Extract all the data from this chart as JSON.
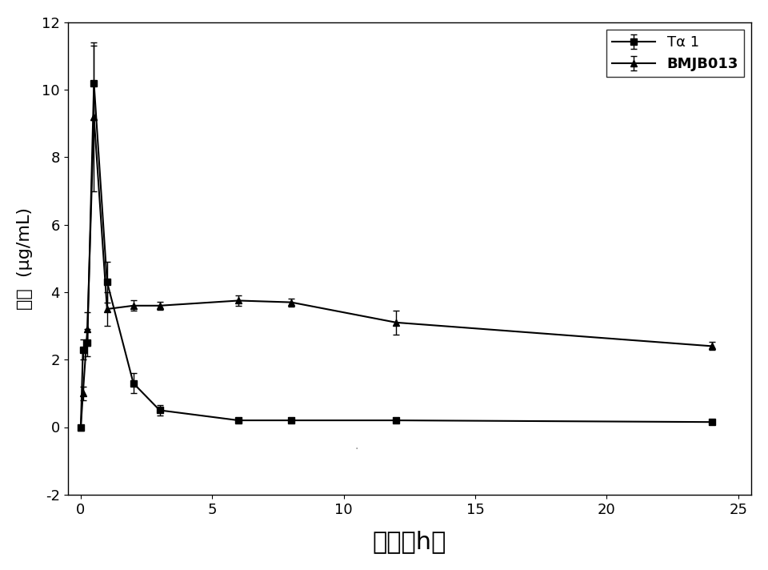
{
  "ta1_x": [
    0,
    0.083,
    0.25,
    0.5,
    1.0,
    2.0,
    3.0,
    6.0,
    8.0,
    12.0,
    24.0
  ],
  "ta1_y": [
    0,
    2.3,
    2.5,
    10.2,
    4.3,
    1.3,
    0.5,
    0.2,
    0.2,
    0.2,
    0.15
  ],
  "ta1_yerr": [
    0,
    0.3,
    0.4,
    1.1,
    0.6,
    0.3,
    0.15,
    0.05,
    0.05,
    0.05,
    0.05
  ],
  "bmjb_x": [
    0,
    0.083,
    0.25,
    0.5,
    1.0,
    2.0,
    3.0,
    6.0,
    8.0,
    12.0,
    24.0
  ],
  "bmjb_y": [
    0,
    1.0,
    2.9,
    9.2,
    3.5,
    3.6,
    3.6,
    3.75,
    3.7,
    3.1,
    2.4
  ],
  "bmjb_yerr": [
    0,
    0.2,
    0.5,
    2.2,
    0.5,
    0.15,
    0.12,
    0.15,
    0.12,
    0.35,
    0.12
  ],
  "xlim": [
    -0.5,
    25.5
  ],
  "ylim": [
    -2,
    12
  ],
  "xticks": [
    0,
    5,
    10,
    15,
    20,
    25
  ],
  "yticks": [
    -2,
    0,
    2,
    4,
    6,
    8,
    10,
    12
  ],
  "xlabel": "时间（h）",
  "ylabel_line1": "浓",
  "ylabel_line2": "度",
  "ylabel_line3": "(μg/mL)",
  "legend_ta1": "Tα 1",
  "legend_bmjb": "BMJB013",
  "line_color": "#000000",
  "bg_color": "#ffffff",
  "xlabel_fontsize": 22,
  "ylabel_fontsize": 16,
  "tick_fontsize": 13,
  "legend_fontsize": 13
}
